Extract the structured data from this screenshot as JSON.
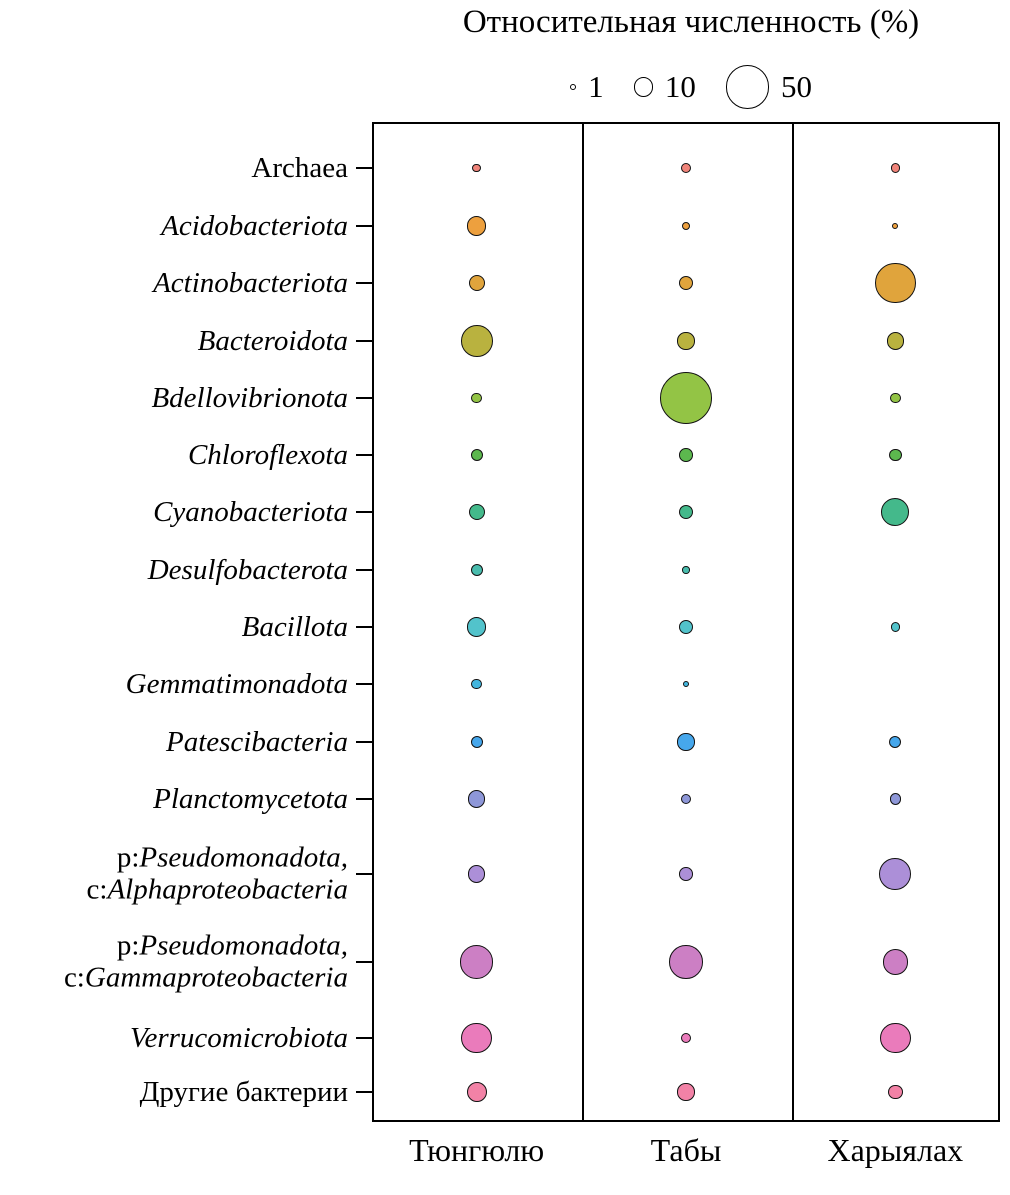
{
  "chart_data": {
    "type": "bubble",
    "title": "Относительная численность (%)",
    "size_legend": [
      1,
      10,
      50
    ],
    "legend_note": "bubble area encodes relative abundance in percent",
    "columns": [
      "Тюнгюлю",
      "Табы",
      "Харыялах"
    ],
    "rows": [
      {
        "color": "#F0847A",
        "values": [
          2,
          3,
          2.5
        ],
        "label_lines": [
          [
            {
              "t": "Archaea",
              "i": false
            }
          ]
        ]
      },
      {
        "color": "#EDA03E",
        "values": [
          10,
          2,
          1
        ],
        "label_lines": [
          [
            {
              "t": "Acidobacteriota",
              "i": true
            }
          ]
        ]
      },
      {
        "color": "#E0A43C",
        "values": [
          7,
          6,
          45
        ],
        "label_lines": [
          [
            {
              "t": "Actinobacteriota",
              "i": true
            }
          ]
        ]
      },
      {
        "color": "#B9B23F",
        "values": [
          27,
          8,
          8
        ],
        "label_lines": [
          [
            {
              "t": "Bacteroidota",
              "i": true
            }
          ]
        ]
      },
      {
        "color": "#93C445",
        "values": [
          3,
          75,
          3
        ],
        "label_lines": [
          [
            {
              "t": "Bdellovibrionota",
              "i": true
            }
          ]
        ]
      },
      {
        "color": "#5CB84E",
        "values": [
          4,
          5,
          4.5
        ],
        "label_lines": [
          [
            {
              "t": "Chloroflexota",
              "i": true
            }
          ]
        ]
      },
      {
        "color": "#44B98B",
        "values": [
          7,
          6,
          21
        ],
        "label_lines": [
          [
            {
              "t": "Cyanobacteriota",
              "i": true
            }
          ]
        ]
      },
      {
        "color": "#49BCAD",
        "values": [
          4,
          1.5,
          null
        ],
        "label_lines": [
          [
            {
              "t": "Desulfobacterota",
              "i": true
            }
          ]
        ]
      },
      {
        "color": "#52C3CB",
        "values": [
          10,
          6,
          2.5
        ],
        "label_lines": [
          [
            {
              "t": "Bacillota",
              "i": true
            }
          ]
        ]
      },
      {
        "color": "#43B6DE",
        "values": [
          3,
          1,
          null
        ],
        "label_lines": [
          [
            {
              "t": "Gemmatimonadota",
              "i": true
            }
          ]
        ]
      },
      {
        "color": "#46A7EC",
        "values": [
          4,
          8,
          4
        ],
        "label_lines": [
          [
            {
              "t": "Patescibacteria",
              "i": true
            }
          ]
        ]
      },
      {
        "color": "#8E97D8",
        "values": [
          8,
          3,
          3.5
        ],
        "label_lines": [
          [
            {
              "t": "Planctomycetota",
              "i": true
            }
          ]
        ]
      },
      {
        "color": "#AC8FD8",
        "values": [
          8,
          5,
          27
        ],
        "label_lines": [
          [
            {
              "t": "p:",
              "i": false
            },
            {
              "t": "Pseudomonadota,",
              "i": true
            }
          ],
          [
            {
              "t": "c:",
              "i": false
            },
            {
              "t": "Alphaproteobacteria",
              "i": true
            }
          ]
        ]
      },
      {
        "color": "#CC7FC4",
        "values": [
          30,
          30,
          17
        ],
        "label_lines": [
          [
            {
              "t": "p:",
              "i": false
            },
            {
              "t": "Pseudomonadota,",
              "i": true
            }
          ],
          [
            {
              "t": "c:",
              "i": false
            },
            {
              "t": "Gammaproteobacteria",
              "i": true
            }
          ]
        ]
      },
      {
        "color": "#EA7BBB",
        "values": [
          25,
          3,
          25
        ],
        "label_lines": [
          [
            {
              "t": "Verrucomicrobiota",
              "i": true
            }
          ]
        ]
      },
      {
        "color": "#F282A6",
        "values": [
          11,
          8,
          6
        ],
        "label_lines": [
          [
            {
              "t": "Другие бактерии",
              "i": false
            }
          ]
        ]
      }
    ]
  }
}
